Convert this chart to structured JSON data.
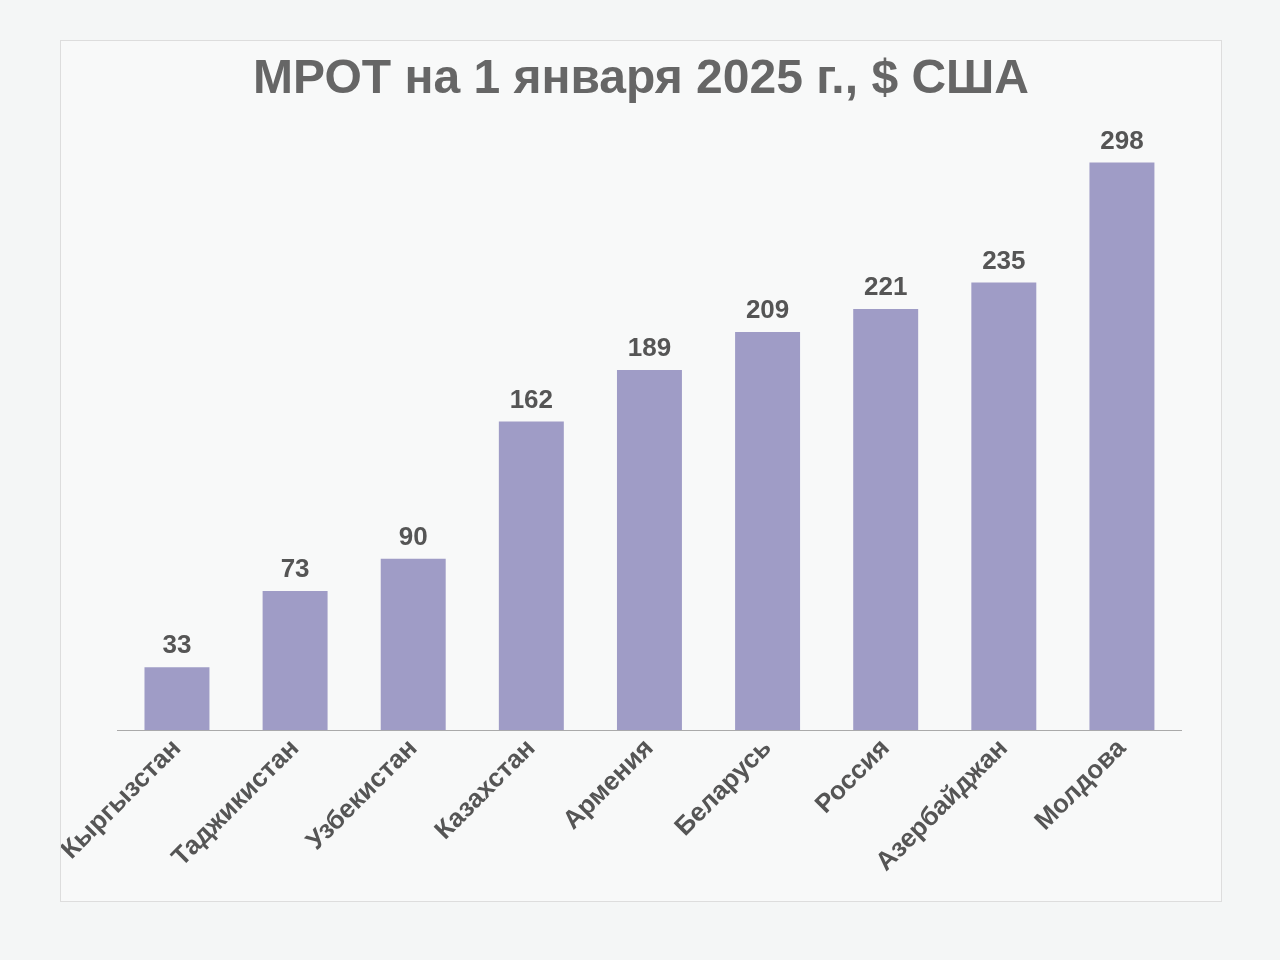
{
  "chart_data": {
    "type": "bar",
    "title": "МРОТ на 1 января 2025 г., $ США",
    "categories": [
      "Кыргызстан",
      "Таджикистан",
      "Узбекистан",
      "Казахстан",
      "Армения",
      "Беларусь",
      "Россия",
      "Азербайджан",
      "Молдова"
    ],
    "values": [
      33,
      73,
      90,
      162,
      189,
      209,
      221,
      235,
      298
    ],
    "color": "#9f9cc6",
    "data_labels": true
  }
}
